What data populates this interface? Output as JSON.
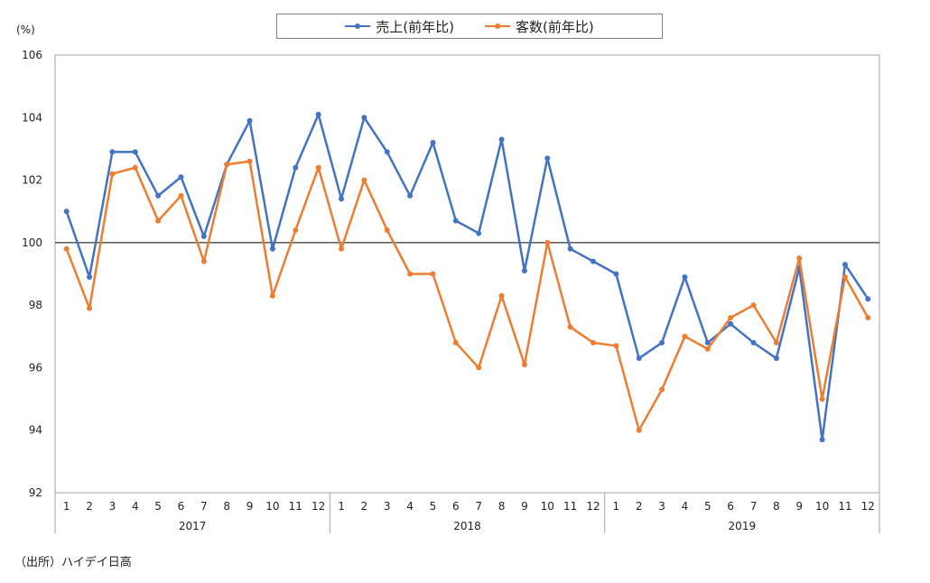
{
  "chart_data": {
    "type": "line",
    "y_unit": "(%)",
    "ylim": [
      92,
      106
    ],
    "yticks": [
      92,
      94,
      96,
      98,
      100,
      102,
      104,
      106
    ],
    "reference_line": 100,
    "x_months": [
      "1",
      "2",
      "3",
      "4",
      "5",
      "6",
      "7",
      "8",
      "9",
      "10",
      "11",
      "12",
      "1",
      "2",
      "3",
      "4",
      "5",
      "6",
      "7",
      "8",
      "9",
      "10",
      "11",
      "12",
      "1",
      "2",
      "3",
      "4",
      "5",
      "6",
      "7",
      "8",
      "9",
      "10",
      "11",
      "12"
    ],
    "x_years": [
      "2017",
      "2018",
      "2019"
    ],
    "series": [
      {
        "name": "売上(前年比)",
        "color": "#4472c4",
        "values": [
          101.0,
          98.9,
          102.9,
          102.9,
          101.5,
          102.1,
          100.2,
          102.5,
          103.9,
          99.8,
          102.4,
          104.1,
          101.4,
          104.0,
          102.9,
          101.5,
          103.2,
          100.7,
          100.3,
          103.3,
          99.1,
          102.7,
          99.8,
          99.4,
          99.0,
          96.3,
          96.8,
          98.9,
          96.8,
          97.4,
          96.8,
          96.3,
          99.2,
          93.7,
          99.3,
          98.2
        ]
      },
      {
        "name": "客数(前年比)",
        "color": "#ed7d31",
        "values": [
          99.8,
          97.9,
          102.2,
          102.4,
          100.7,
          101.5,
          99.4,
          102.5,
          102.6,
          98.3,
          100.4,
          102.4,
          99.8,
          102.0,
          100.4,
          99.0,
          99.0,
          96.8,
          96.0,
          98.3,
          96.1,
          100.0,
          97.3,
          96.8,
          96.7,
          94.0,
          95.3,
          97.0,
          96.6,
          97.6,
          98.0,
          96.8,
          99.5,
          95.0,
          98.9,
          97.6
        ]
      }
    ],
    "legend_position": "top"
  },
  "source_note": "（出所）ハイデイ日高"
}
